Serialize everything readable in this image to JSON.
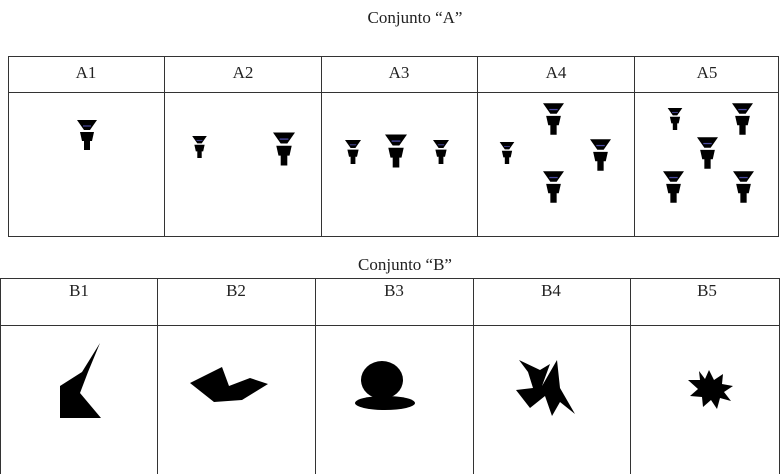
{
  "sets": [
    {
      "title": "Conjunto “A”",
      "headers": [
        "A1",
        "A2",
        "A3",
        "A4",
        "A5"
      ]
    },
    {
      "title": "Conjunto “B”",
      "headers": [
        "B1",
        "B2",
        "B3",
        "B4",
        "B5"
      ]
    }
  ]
}
